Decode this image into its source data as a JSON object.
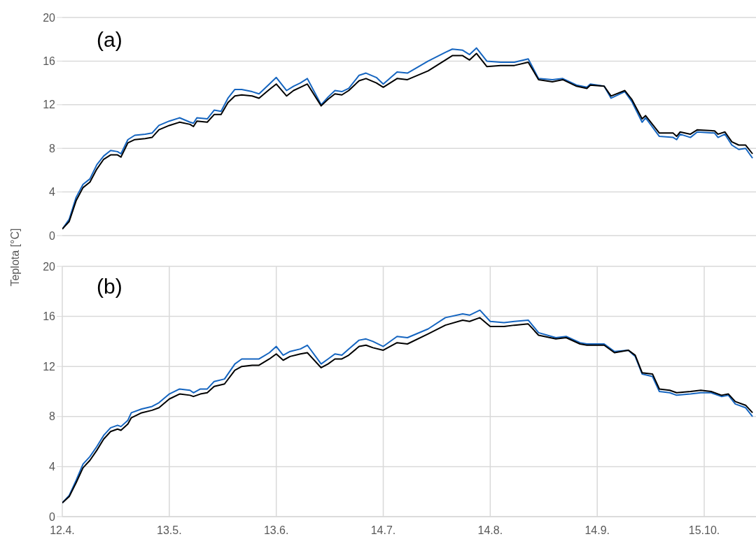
{
  "chart_data": [
    {
      "type": "line",
      "ylabel": "Teplota [°C]",
      "annotations": [
        "(a)"
      ],
      "tick_labels": "y",
      "grid": true,
      "xlim": [
        "--04-12",
        "--10-30"
      ],
      "ylim": [
        0,
        20
      ],
      "yticks": [
        0,
        4,
        8,
        12,
        16,
        20
      ],
      "xticks": [
        {
          "value": "--04-12",
          "label": "12.4."
        },
        {
          "value": "--05-13",
          "label": "13.5."
        },
        {
          "value": "--06-13",
          "label": "13.6."
        },
        {
          "value": "--07-14",
          "label": "14.7."
        },
        {
          "value": "--08-14",
          "label": "14.8."
        },
        {
          "value": "--09-14",
          "label": "14.9."
        },
        {
          "value": "--10-15",
          "label": "15.10."
        }
      ],
      "x": [
        "--04-12",
        "--04-14",
        "--04-16",
        "--04-18",
        "--04-20",
        "--04-22",
        "--04-24",
        "--04-26",
        "--04-28",
        "--04-29",
        "--05-01",
        "--05-03",
        "--05-06",
        "--05-08",
        "--05-10",
        "--05-13",
        "--05-16",
        "--05-19",
        "--05-20",
        "--05-21",
        "--05-24",
        "--05-26",
        "--05-28",
        "--05-30",
        "--06-01",
        "--06-03",
        "--06-06",
        "--06-08",
        "--06-11",
        "--06-13",
        "--06-16",
        "--06-18",
        "--06-20",
        "--06-22",
        "--06-26",
        "--06-28",
        "--06-30",
        "--07-02",
        "--07-04",
        "--07-07",
        "--07-09",
        "--07-12",
        "--07-14",
        "--07-18",
        "--07-21",
        "--07-27",
        "--08-01",
        "--08-03",
        "--08-06",
        "--08-08",
        "--08-10",
        "--08-13",
        "--08-17",
        "--08-21",
        "--08-25",
        "--08-28",
        "--09-01",
        "--09-04",
        "--09-08",
        "--09-11",
        "--09-12",
        "--09-16",
        "--09-18",
        "--09-22",
        "--09-24",
        "--09-27",
        "--09-28",
        "--10-02",
        "--10-06",
        "--10-07",
        "--10-08",
        "--10-11",
        "--10-13",
        "--10-18",
        "--10-19",
        "--10-21",
        "--10-23",
        "--10-25",
        "--10-27",
        "--10-29"
      ],
      "series": [
        {
          "color": "#1565c0",
          "values": [
            0.6,
            1.5,
            3.5,
            4.7,
            5.2,
            6.5,
            7.3,
            7.8,
            7.7,
            7.5,
            8.8,
            9.2,
            9.3,
            9.4,
            10.1,
            10.5,
            10.8,
            10.4,
            10.3,
            10.8,
            10.7,
            11.5,
            11.4,
            12.6,
            13.4,
            13.4,
            13.2,
            13.0,
            13.9,
            14.5,
            13.3,
            13.7,
            14.0,
            14.4,
            12.0,
            12.7,
            13.3,
            13.2,
            13.5,
            14.7,
            14.9,
            14.5,
            13.9,
            15.0,
            14.9,
            16.0,
            16.8,
            17.1,
            17.0,
            16.6,
            17.2,
            16.0,
            15.9,
            15.9,
            16.2,
            14.4,
            14.3,
            14.4,
            13.8,
            13.6,
            13.9,
            13.7,
            12.6,
            13.2,
            12.3,
            10.4,
            10.8,
            9.1,
            9.0,
            8.8,
            9.3,
            9.0,
            9.5,
            9.4,
            9.0,
            9.3,
            8.3,
            7.9,
            8.0,
            7.1
          ]
        },
        {
          "color": "#000000",
          "values": [
            0.6,
            1.3,
            3.2,
            4.4,
            4.9,
            6.1,
            7.0,
            7.4,
            7.4,
            7.2,
            8.5,
            8.8,
            8.9,
            9.0,
            9.7,
            10.1,
            10.4,
            10.2,
            10.0,
            10.5,
            10.4,
            11.1,
            11.1,
            12.2,
            12.8,
            12.9,
            12.8,
            12.6,
            13.4,
            13.9,
            12.8,
            13.3,
            13.6,
            13.9,
            11.9,
            12.5,
            13.0,
            12.9,
            13.3,
            14.2,
            14.4,
            14.0,
            13.6,
            14.4,
            14.3,
            15.1,
            16.1,
            16.5,
            16.5,
            16.1,
            16.7,
            15.5,
            15.6,
            15.6,
            15.9,
            14.3,
            14.1,
            14.3,
            13.7,
            13.5,
            13.8,
            13.7,
            12.8,
            13.3,
            12.5,
            10.7,
            11.0,
            9.4,
            9.4,
            9.1,
            9.5,
            9.3,
            9.7,
            9.6,
            9.3,
            9.5,
            8.6,
            8.3,
            8.3,
            7.5
          ]
        }
      ]
    },
    {
      "type": "line",
      "annotations": [
        "(b)"
      ],
      "grid": true,
      "xlim": [
        "--04-12",
        "--10-30"
      ],
      "ylim": [
        0,
        20
      ],
      "yticks": [
        0,
        4,
        8,
        12,
        16,
        20
      ],
      "xticks": [
        {
          "value": "--04-12",
          "label": "12.4."
        },
        {
          "value": "--05-13",
          "label": "13.5."
        },
        {
          "value": "--06-13",
          "label": "13.6."
        },
        {
          "value": "--07-14",
          "label": "14.7."
        },
        {
          "value": "--08-14",
          "label": "14.8."
        },
        {
          "value": "--09-14",
          "label": "14.9."
        },
        {
          "value": "--10-15",
          "label": "15.10."
        }
      ],
      "x": [
        "--04-12",
        "--04-14",
        "--04-16",
        "--04-18",
        "--04-20",
        "--04-22",
        "--04-24",
        "--04-26",
        "--04-28",
        "--04-29",
        "--05-01",
        "--05-02",
        "--05-05",
        "--05-08",
        "--05-10",
        "--05-13",
        "--05-16",
        "--05-19",
        "--05-20",
        "--05-22",
        "--05-24",
        "--05-26",
        "--05-29",
        "--06-01",
        "--06-03",
        "--06-06",
        "--06-08",
        "--06-11",
        "--06-13",
        "--06-15",
        "--06-17",
        "--06-20",
        "--06-22",
        "--06-26",
        "--06-28",
        "--06-30",
        "--07-02",
        "--07-04",
        "--07-07",
        "--07-09",
        "--07-11",
        "--07-14",
        "--07-18",
        "--07-21",
        "--07-27",
        "--08-01",
        "--08-06",
        "--08-08",
        "--08-11",
        "--08-14",
        "--08-18",
        "--08-21",
        "--08-25",
        "--08-28",
        "--09-02",
        "--09-05",
        "--09-09",
        "--09-11",
        "--09-16",
        "--09-19",
        "--09-23",
        "--09-25",
        "--09-27",
        "--09-30",
        "--10-02",
        "--10-05",
        "--10-07",
        "--10-11",
        "--10-14",
        "--10-17",
        "--10-20",
        "--10-22",
        "--10-24",
        "--10-27",
        "--10-29"
      ],
      "series": [
        {
          "color": "#1565c0",
          "values": [
            1.1,
            1.7,
            2.9,
            4.2,
            4.8,
            5.6,
            6.5,
            7.1,
            7.3,
            7.2,
            7.7,
            8.3,
            8.6,
            8.8,
            9.1,
            9.8,
            10.2,
            10.1,
            9.9,
            10.2,
            10.2,
            10.8,
            11.0,
            12.2,
            12.6,
            12.6,
            12.6,
            13.1,
            13.6,
            12.9,
            13.2,
            13.4,
            13.7,
            12.2,
            12.6,
            13.0,
            12.9,
            13.4,
            14.1,
            14.2,
            14.0,
            13.6,
            14.4,
            14.3,
            15.0,
            15.9,
            16.2,
            16.1,
            16.5,
            15.6,
            15.5,
            15.6,
            15.7,
            14.7,
            14.3,
            14.4,
            13.9,
            13.8,
            13.8,
            13.2,
            13.3,
            12.8,
            11.4,
            11.2,
            10.0,
            9.9,
            9.7,
            9.8,
            9.9,
            9.9,
            9.6,
            9.7,
            9.0,
            8.7,
            8.0
          ]
        },
        {
          "color": "#000000",
          "values": [
            1.1,
            1.6,
            2.7,
            3.9,
            4.5,
            5.3,
            6.2,
            6.8,
            7.0,
            6.9,
            7.4,
            7.9,
            8.3,
            8.5,
            8.7,
            9.4,
            9.8,
            9.7,
            9.6,
            9.8,
            9.9,
            10.4,
            10.6,
            11.7,
            12.0,
            12.1,
            12.1,
            12.6,
            13.0,
            12.5,
            12.8,
            13.0,
            13.1,
            11.9,
            12.2,
            12.6,
            12.6,
            12.9,
            13.6,
            13.7,
            13.5,
            13.3,
            13.9,
            13.8,
            14.6,
            15.3,
            15.7,
            15.6,
            15.9,
            15.2,
            15.2,
            15.3,
            15.4,
            14.5,
            14.2,
            14.3,
            13.8,
            13.7,
            13.7,
            13.1,
            13.3,
            12.9,
            11.5,
            11.4,
            10.2,
            10.1,
            9.9,
            10.0,
            10.1,
            10.0,
            9.7,
            9.8,
            9.2,
            8.9,
            8.3
          ]
        }
      ]
    }
  ]
}
